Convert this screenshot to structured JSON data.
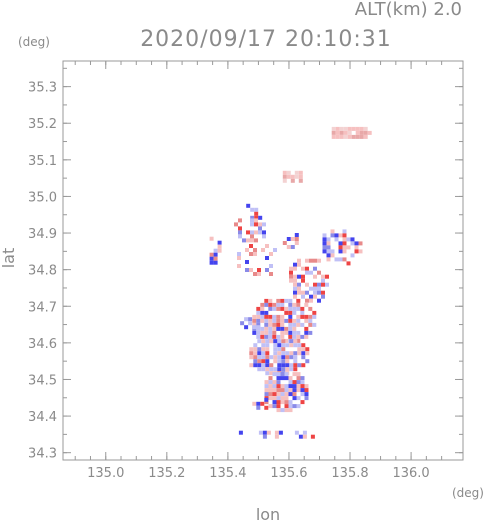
{
  "header": {
    "alt_label": "ALT(km) 2.0",
    "timestamp": "2020/09/17 20:10:31"
  },
  "chart_data": {
    "type": "heatmap",
    "title": "2020/09/17 20:10:31",
    "subtitle": "ALT(km) 2.0",
    "xlabel": "lon",
    "ylabel": "lat",
    "x_unit": "(deg)",
    "y_unit": "(deg)",
    "xlim": [
      134.86,
      136.17
    ],
    "ylim": [
      34.28,
      35.37
    ],
    "x_ticks": [
      "135.0",
      "135.2",
      "135.4",
      "135.6",
      "135.8",
      "136.0"
    ],
    "y_ticks": [
      "34.3",
      "34.4",
      "34.5",
      "34.6",
      "34.7",
      "34.8",
      "34.9",
      "35.0",
      "35.1",
      "35.2",
      "35.3"
    ],
    "grid": false,
    "colors": {
      "positive": "#ee4444",
      "negative": "#4444ee",
      "light_positive": "#f6c0c0",
      "light_negative": "#c0c0f6"
    },
    "echo_regions": [
      {
        "lon_min": 135.74,
        "lon_max": 135.86,
        "lat_min": 35.16,
        "lat_max": 35.19,
        "density": 0.85,
        "dominant": "light_positive"
      },
      {
        "lon_min": 135.58,
        "lon_max": 135.64,
        "lat_min": 35.04,
        "lat_max": 35.07,
        "density": 0.85,
        "dominant": "light_positive"
      },
      {
        "lon_min": 135.46,
        "lon_max": 135.51,
        "lat_min": 34.94,
        "lat_max": 34.98,
        "density": 0.5,
        "dominant": "mixed"
      },
      {
        "lon_min": 135.42,
        "lon_max": 135.52,
        "lat_min": 34.88,
        "lat_max": 34.94,
        "density": 0.5,
        "dominant": "mixed"
      },
      {
        "lon_min": 135.34,
        "lon_max": 135.37,
        "lat_min": 34.82,
        "lat_max": 34.89,
        "density": 0.5,
        "dominant": "mixed"
      },
      {
        "lon_min": 135.43,
        "lon_max": 135.56,
        "lat_min": 34.78,
        "lat_max": 34.87,
        "density": 0.3,
        "dominant": "mixed"
      },
      {
        "lon_min": 135.58,
        "lon_max": 135.63,
        "lat_min": 34.86,
        "lat_max": 34.9,
        "density": 0.45,
        "dominant": "mixed"
      },
      {
        "lon_min": 135.71,
        "lon_max": 135.83,
        "lat_min": 34.82,
        "lat_max": 34.91,
        "density": 0.55,
        "dominant": "mixed"
      },
      {
        "lon_min": 135.6,
        "lon_max": 135.72,
        "lat_min": 34.71,
        "lat_max": 34.83,
        "density": 0.55,
        "dominant": "mixed"
      },
      {
        "lon_min": 135.48,
        "lon_max": 135.68,
        "lat_min": 34.6,
        "lat_max": 34.72,
        "density": 0.8,
        "dominant": "mixed"
      },
      {
        "lon_min": 135.44,
        "lon_max": 135.5,
        "lat_min": 34.64,
        "lat_max": 34.67,
        "density": 0.6,
        "dominant": "mixed"
      },
      {
        "lon_min": 135.47,
        "lon_max": 135.66,
        "lat_min": 34.52,
        "lat_max": 34.61,
        "density": 0.85,
        "dominant": "mixed"
      },
      {
        "lon_min": 135.52,
        "lon_max": 135.66,
        "lat_min": 34.42,
        "lat_max": 34.52,
        "density": 0.8,
        "dominant": "mixed"
      },
      {
        "lon_min": 135.48,
        "lon_max": 135.53,
        "lat_min": 34.42,
        "lat_max": 34.45,
        "density": 0.6,
        "dominant": "mixed"
      },
      {
        "lon_min": 135.41,
        "lon_max": 135.69,
        "lat_min": 34.34,
        "lat_max": 34.36,
        "density": 0.35,
        "dominant": "mixed"
      }
    ]
  }
}
